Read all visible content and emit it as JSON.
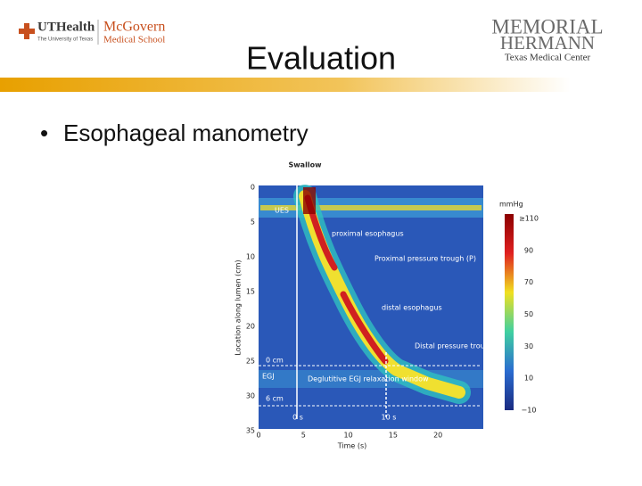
{
  "header": {
    "left_logo": {
      "name": "UTHealth",
      "subtitle": "The University of Texas",
      "school_1": "McGovern",
      "school_2": "Medical School"
    },
    "right_logo": {
      "line_1": "MEMORIAL",
      "line_2": "HERMANN",
      "line_3": "Texas Medical Center"
    },
    "title": "Evaluation"
  },
  "bullets": [
    "Esophageal manometry"
  ],
  "figure": {
    "swallow": "Swallow",
    "ues": "UES",
    "annotations": [
      "proximal esophagus",
      "Proximal pressure trough (P)",
      "distal esophagus",
      "Distal pressure trough (D)",
      "Deglutitive EGJ relaxation window"
    ],
    "egj_labels": [
      "0 cm",
      "EGJ",
      "6 cm"
    ],
    "time_marks": [
      "0 s",
      "10 s"
    ],
    "y_label": "Location along lumen (cm)",
    "x_label": "Time (s)",
    "y_ticks": [
      0,
      5,
      10,
      15,
      20,
      25,
      30,
      35
    ],
    "x_ticks": [
      0,
      5,
      10,
      15,
      20
    ],
    "colorbar_unit": "mmHg",
    "colorbar_ticks": [
      "≥110",
      "90",
      "70",
      "50",
      "30",
      "10",
      "−10"
    ]
  }
}
